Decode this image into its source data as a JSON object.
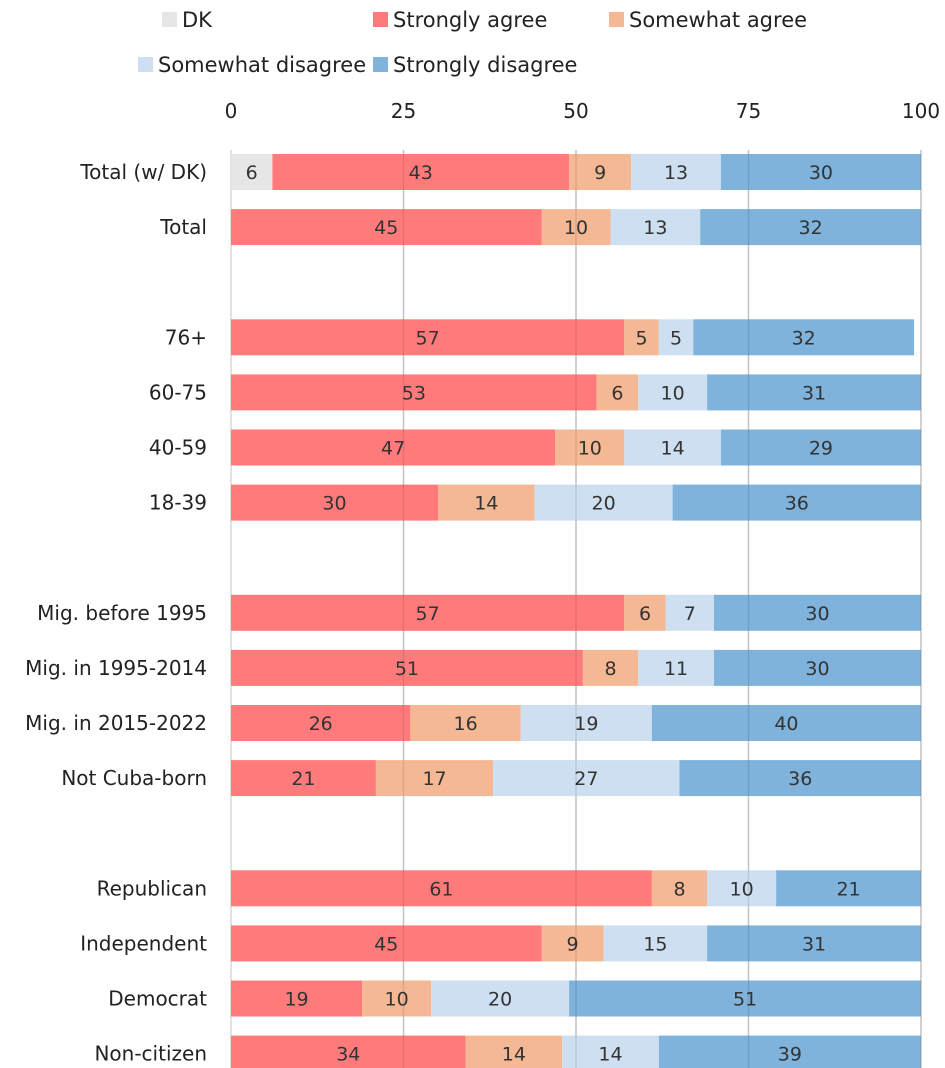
{
  "chart_data": {
    "type": "bar",
    "orientation": "horizontal",
    "stacked": true,
    "xlim": [
      0,
      100
    ],
    "xticks": [
      0,
      25,
      50,
      75,
      100
    ],
    "grid": true,
    "legend_position": "top",
    "categories": [
      "Total (w/ DK)",
      "Total",
      "",
      "76+",
      "60-75",
      "40-59",
      "18-39",
      "",
      "Mig. before 1995",
      "Mig. in 1995-2014",
      "Mig. in 2015-2022",
      "Not Cuba-born",
      "",
      "Republican",
      "Independent",
      "Democrat",
      "Non-citizen"
    ],
    "series": [
      {
        "name": "DK",
        "color": "#e6e6e6",
        "values": [
          6,
          null,
          null,
          null,
          null,
          null,
          null,
          null,
          null,
          null,
          null,
          null,
          null,
          null,
          null,
          null,
          null
        ]
      },
      {
        "name": "Strongly agree",
        "color": "#ff7b7b",
        "values": [
          43,
          45,
          null,
          57,
          53,
          47,
          30,
          null,
          57,
          51,
          26,
          21,
          null,
          61,
          45,
          19,
          34
        ]
      },
      {
        "name": "Somewhat agree",
        "color": "#f5b895",
        "values": [
          9,
          10,
          null,
          5,
          6,
          10,
          14,
          null,
          6,
          8,
          16,
          17,
          null,
          8,
          9,
          10,
          14
        ]
      },
      {
        "name": "Somewhat disagree",
        "color": "#cddff0",
        "values": [
          13,
          13,
          null,
          5,
          10,
          14,
          20,
          null,
          7,
          11,
          19,
          27,
          null,
          10,
          15,
          20,
          14
        ]
      },
      {
        "name": "Strongly disagree",
        "color": "#7fb3db",
        "values": [
          30,
          32,
          null,
          32,
          31,
          29,
          36,
          null,
          30,
          30,
          40,
          36,
          null,
          21,
          31,
          51,
          39
        ]
      }
    ]
  }
}
